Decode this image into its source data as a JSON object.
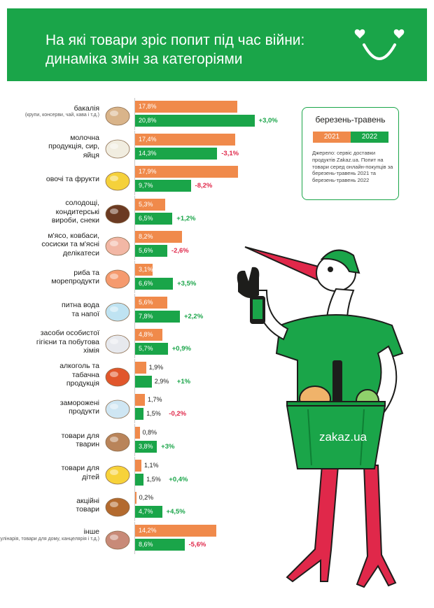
{
  "header": {
    "title": "На які товари зріс попит під час війни: динаміка змін за категоріями"
  },
  "legend": {
    "title": "березень-травень",
    "year_a": "2021",
    "year_b": "2022",
    "note": "Джерело: сервіс доставки продуктів Zakaz.ua. Попит на товари серед онлайн-покупців за березень-травень 2021 та березень-травень 2022"
  },
  "basket": {
    "brand": "zakaz.ua"
  },
  "colors": {
    "green": "#1aa549",
    "orange": "#f08a4b",
    "negative": "#e0284a"
  },
  "chart_data": {
    "type": "bar",
    "orientation": "horizontal",
    "categories": [
      "бакалія",
      "молочна продукція, сир, яйця",
      "овочі та фрукти",
      "солодощі, кондитерські вироби, снеки",
      "м'ясо, ковбаси, сосиски та м'ясні делікатеси",
      "риба та морепродукти",
      "питна вода та напої",
      "засоби особистої гігієни та побутова хімія",
      "алкоголь та табачна продукція",
      "заморожені продукти",
      "товари для тварин",
      "товари для дітей",
      "акційні товари",
      "інше"
    ],
    "category_notes": [
      "(крупи, консерви, чай, кава і т.д.)",
      "",
      "",
      "",
      "",
      "",
      "",
      "",
      "",
      "",
      "",
      "",
      "",
      "(кулінарія, товари для дому, канцелярія і т.д.)"
    ],
    "series": [
      {
        "name": "2021",
        "values": [
          17.8,
          17.4,
          17.9,
          5.3,
          8.2,
          3.1,
          5.6,
          4.8,
          1.9,
          1.7,
          0.8,
          1.1,
          0.2,
          14.2
        ]
      },
      {
        "name": "2022",
        "values": [
          20.8,
          14.3,
          9.7,
          6.5,
          5.6,
          6.6,
          7.8,
          5.7,
          2.9,
          1.5,
          3.8,
          1.5,
          4.7,
          8.6
        ]
      }
    ],
    "value_labels_2021": [
      "17,8%",
      "17,4%",
      "17,9%",
      "5,3%",
      "8,2%",
      "3,1%",
      "5,6%",
      "4,8%",
      "1,9%",
      "1,7%",
      "0,8%",
      "1,1%",
      "0,2%",
      "14,2%"
    ],
    "value_labels_2022": [
      "20,8%",
      "14,3%",
      "9,7%",
      "6,5%",
      "5,6%",
      "6,6%",
      "7,8%",
      "5,7%",
      "2,9%",
      "1,5%",
      "3,8%",
      "1,5%",
      "4,7%",
      "8,6%"
    ],
    "changes": [
      "+3,0%",
      "-3,1%",
      "-8,2%",
      "+1,2%",
      "-2,6%",
      "+3,5%",
      "+2,2%",
      "+0,9%",
      "+1%",
      "-0,2%",
      "+3%",
      "+0,4%",
      "+4,5%",
      "-5,6%"
    ],
    "label_lines": [
      [
        "бакалія"
      ],
      [
        "молочна",
        "продукція, сир,",
        "яйця"
      ],
      [
        "овочі та фрукти"
      ],
      [
        "солодощі,",
        "кондитерські",
        "вироби, снеки"
      ],
      [
        "м'ясо, ковбаси,",
        "сосиски та м'ясні",
        "делікатеси"
      ],
      [
        "риба та",
        "морепродукти"
      ],
      [
        "питна вода",
        "та напої"
      ],
      [
        "засоби особистої",
        "гігієни та побутова",
        "хімія"
      ],
      [
        "алкоголь та",
        "табачна",
        "продукція"
      ],
      [
        "заморожені",
        "продукти"
      ],
      [
        "товари для",
        "тварин"
      ],
      [
        "товари для",
        "дітей"
      ],
      [
        "акційні",
        "товари"
      ],
      [
        "інше"
      ]
    ],
    "icons": [
      "flour-sack-icon",
      "milk-eggs-icon",
      "banana-icon",
      "chocolate-candy-icon",
      "meat-icon",
      "shrimp-icon",
      "water-bottle-icon",
      "toothbrush-icon",
      "cocktail-icon",
      "ice-cubes-icon",
      "cat-dog-icon",
      "rubber-duck-icon",
      "discount-goods-icon",
      "food-tray-icon"
    ],
    "xlim": [
      0,
      21
    ],
    "legend_position": "top-right"
  }
}
